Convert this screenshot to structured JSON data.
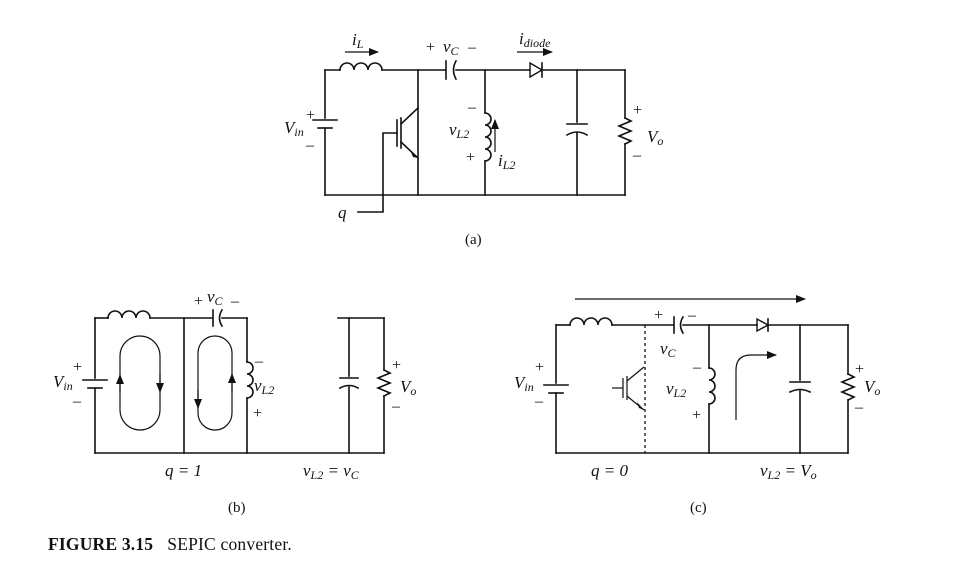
{
  "figure": {
    "number": "FIGURE 3.15",
    "title": "SEPIC converter."
  },
  "circuit_a": {
    "label": "(a)",
    "sym_i": "i",
    "sub_L": "L",
    "sym_v": "v",
    "sub_C": "C",
    "sub_diode": "diode",
    "sym_V": "V",
    "sub_in": "in",
    "sub_L2": "L2",
    "sub_o": "o",
    "q": "q",
    "plus": "+",
    "minus": "–"
  },
  "circuit_b": {
    "label": "(b)",
    "q_state": "q = 1",
    "eq_lhs_v": "v",
    "eq_lhs_sub": "L2",
    "eq_mid": " = ",
    "eq_rhs_v": "v",
    "eq_rhs_sub": "C"
  },
  "circuit_c": {
    "label": "(c)",
    "q_state": "q = 0",
    "eq_lhs_v": "v",
    "eq_lhs_sub": "L2",
    "eq_mid": " = ",
    "eq_rhs_V": "V",
    "eq_rhs_sub": "o"
  }
}
